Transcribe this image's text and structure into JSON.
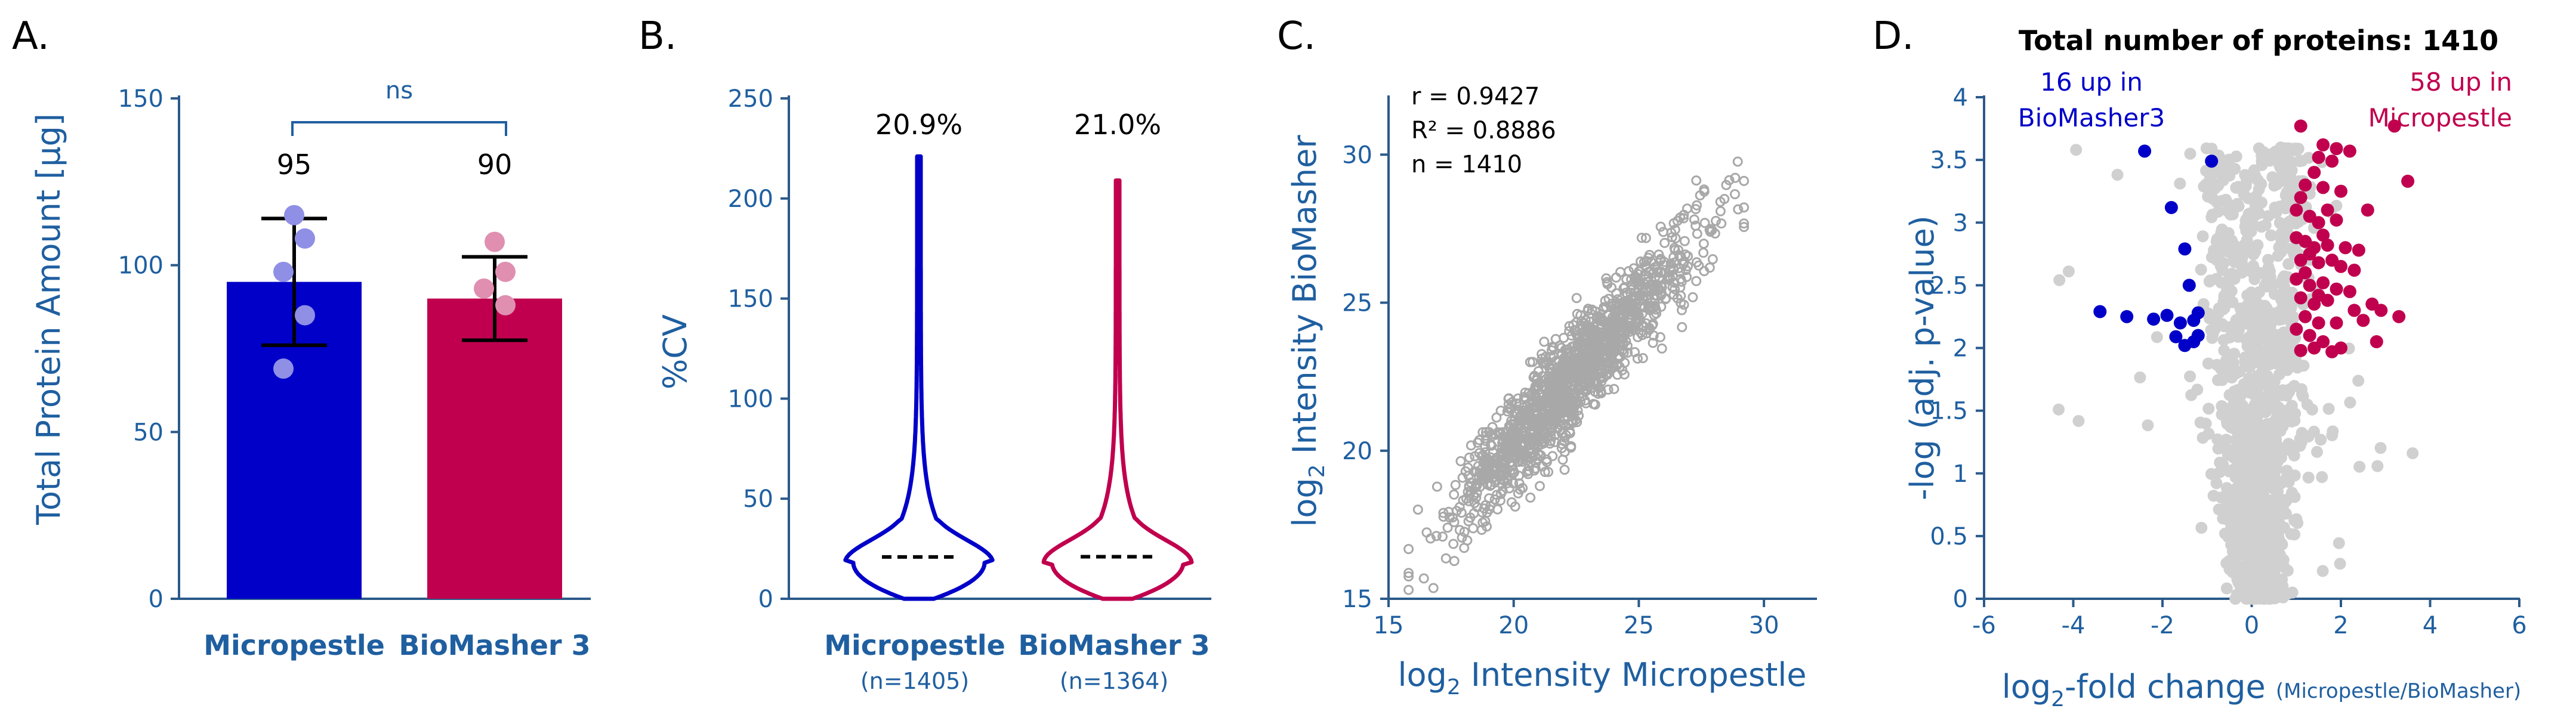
{
  "colors": {
    "micropestle": "#0000c8",
    "biomasher": "#c0004e",
    "axis": "#1f5fa0",
    "scatter": "#a8a8a8",
    "volcano_gray": "#d0d0d0"
  },
  "chart_data": [
    {
      "panel": "A.",
      "type": "bar",
      "categories": [
        "Micropestle",
        "BioMasher 3"
      ],
      "values": [
        95,
        90
      ],
      "value_labels": [
        "95",
        "90"
      ],
      "error_sd": [
        19,
        12.5
      ],
      "replicates": [
        [
          115,
          108,
          98,
          85,
          69
        ],
        [
          107,
          98,
          93,
          88
        ]
      ],
      "ylabel": "Total Protein Amount [µg]",
      "ylim": [
        0,
        150
      ],
      "yticks": [
        "0",
        "50",
        "100",
        "150"
      ],
      "significance": "ns"
    },
    {
      "panel": "B.",
      "type": "violin",
      "categories": [
        "Micropestle",
        "BioMasher 3"
      ],
      "counts": [
        "(n=1405)",
        "(n=1364)"
      ],
      "medians": [
        20.9,
        21.0
      ],
      "median_labels": [
        "20.9%",
        "21.0%"
      ],
      "max": [
        221,
        209
      ],
      "ylabel": "%CV",
      "ylim": [
        0,
        250
      ],
      "yticks": [
        "0",
        "50",
        "100",
        "150",
        "200",
        "250"
      ]
    },
    {
      "panel": "C.",
      "type": "scatter",
      "xlabel_main": "log",
      "xlabel_sub": "2",
      "xlabel_rest": " Intensity Micropestle",
      "ylabel_main": "log",
      "ylabel_sub": "2",
      "ylabel_rest": " Intensity BioMasher",
      "xlim": [
        15,
        32
      ],
      "ylim": [
        15,
        32
      ],
      "xticks": [
        "15",
        "20",
        "25",
        "30"
      ],
      "yticks": [
        "15",
        "20",
        "25",
        "30"
      ],
      "stats": [
        "r = 0.9427",
        "R² = 0.8886",
        "n = 1410"
      ],
      "n_points": 1410,
      "fit_slope": 0.94,
      "fit_intercept": 1.4,
      "x_mean": 22.4,
      "x_sd": 2.4
    },
    {
      "panel": "D.",
      "type": "scatter",
      "title": "Total number of proteins: 1410",
      "xlabel_main": "log",
      "xlabel_sub": "2",
      "xlabel_rest": "-fold change ",
      "xlabel_small": "(Micropestle/BioMasher)",
      "ylabel": "-log (adj. p-value)",
      "xlim": [
        -6,
        6
      ],
      "ylim": [
        0,
        4
      ],
      "xticks": [
        "-6",
        "-4",
        "-2",
        "0",
        "2",
        "4",
        "6"
      ],
      "yticks": [
        "0",
        "0.5",
        "1",
        "1.5",
        "2",
        "2.5",
        "3",
        "3.5",
        "4"
      ],
      "annotation_left": [
        "16 up in",
        "BioMasher3"
      ],
      "annotation_right": [
        "58 up in",
        "Micropestle"
      ],
      "up_biomasher": [
        [
          -2.4,
          3.57
        ],
        [
          -0.9,
          3.49
        ],
        [
          -1.8,
          3.12
        ],
        [
          -1.5,
          2.79
        ],
        [
          -1.4,
          2.5
        ],
        [
          -3.4,
          2.29
        ],
        [
          -2.8,
          2.25
        ],
        [
          -2.2,
          2.23
        ],
        [
          -1.9,
          2.26
        ],
        [
          -1.6,
          2.2
        ],
        [
          -1.3,
          2.22
        ],
        [
          -1.2,
          2.28
        ],
        [
          -1.5,
          2.02
        ],
        [
          -1.3,
          2.05
        ],
        [
          -1.2,
          2.1
        ],
        [
          -1.7,
          2.09
        ]
      ],
      "up_micropestle": [
        [
          1.1,
          3.77
        ],
        [
          1.6,
          3.62
        ],
        [
          1.9,
          3.59
        ],
        [
          1.5,
          3.52
        ],
        [
          1.8,
          3.49
        ],
        [
          3.2,
          3.77
        ],
        [
          3.5,
          3.33
        ],
        [
          2.2,
          3.57
        ],
        [
          1.2,
          3.3
        ],
        [
          1.6,
          3.28
        ],
        [
          2.0,
          3.25
        ],
        [
          1.0,
          3.1
        ],
        [
          1.3,
          3.05
        ],
        [
          1.5,
          3.0
        ],
        [
          1.9,
          3.02
        ],
        [
          2.6,
          3.1
        ],
        [
          1.2,
          2.85
        ],
        [
          1.4,
          2.8
        ],
        [
          1.7,
          2.82
        ],
        [
          2.1,
          2.8
        ],
        [
          2.4,
          2.78
        ],
        [
          1.1,
          2.7
        ],
        [
          1.5,
          2.68
        ],
        [
          1.8,
          2.7
        ],
        [
          2.3,
          2.62
        ],
        [
          1.0,
          2.55
        ],
        [
          1.3,
          2.5
        ],
        [
          1.6,
          2.52
        ],
        [
          1.9,
          2.47
        ],
        [
          2.2,
          2.45
        ],
        [
          1.1,
          2.4
        ],
        [
          1.4,
          2.35
        ],
        [
          1.7,
          2.38
        ],
        [
          2.7,
          2.35
        ],
        [
          3.3,
          2.25
        ],
        [
          1.2,
          2.25
        ],
        [
          1.5,
          2.2
        ],
        [
          2.5,
          2.22
        ],
        [
          1.0,
          2.15
        ],
        [
          1.3,
          2.1
        ],
        [
          1.6,
          2.05
        ],
        [
          2.0,
          2.0
        ],
        [
          2.8,
          2.05
        ],
        [
          1.1,
          1.98
        ],
        [
          1.4,
          2.0
        ],
        [
          1.8,
          1.97
        ],
        [
          1.2,
          2.6
        ],
        [
          2.0,
          2.65
        ],
        [
          1.7,
          3.1
        ],
        [
          1.4,
          3.4
        ],
        [
          2.3,
          2.3
        ],
        [
          1.9,
          2.2
        ],
        [
          1.0,
          2.88
        ],
        [
          1.6,
          2.9
        ],
        [
          1.1,
          3.2
        ],
        [
          2.9,
          2.3
        ],
        [
          1.5,
          2.42
        ],
        [
          1.3,
          2.75
        ]
      ],
      "n_background": 1336
    }
  ]
}
